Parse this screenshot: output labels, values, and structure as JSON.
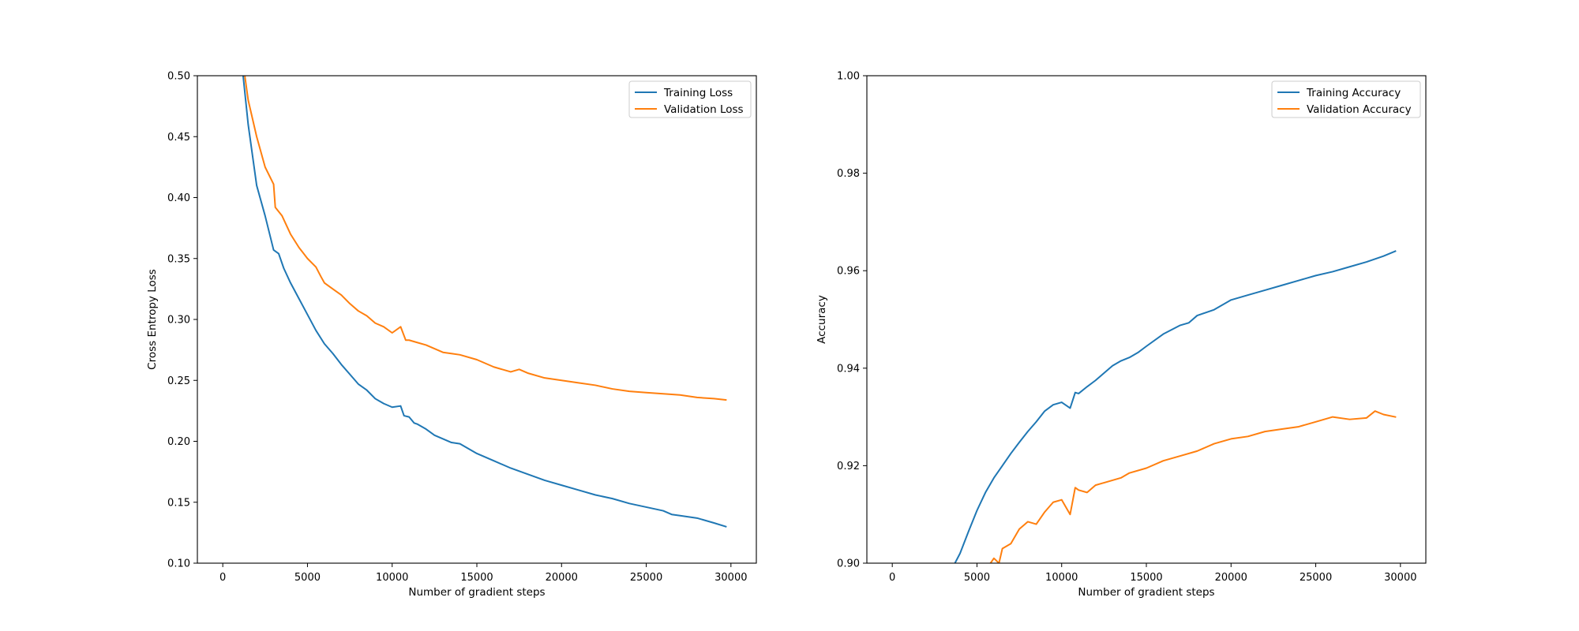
{
  "chart_data": [
    {
      "type": "line",
      "xlabel": "Number of gradient steps",
      "ylabel": "Cross Entropy Loss",
      "xlim": [
        -1500,
        31500
      ],
      "ylim": [
        0.1,
        0.5
      ],
      "xticks": [
        0,
        5000,
        10000,
        15000,
        20000,
        25000,
        30000
      ],
      "yticks": [
        0.1,
        0.15,
        0.2,
        0.25,
        0.3,
        0.35,
        0.4,
        0.45,
        0.5
      ],
      "ytick_decimals": 2,
      "legend": "top-right",
      "series": [
        {
          "name": "Training Loss",
          "color": "#1f77b4",
          "x": [
            0,
            1200,
            1500,
            2000,
            2500,
            3000,
            3300,
            3600,
            4000,
            4500,
            5000,
            5500,
            6000,
            6500,
            7000,
            7500,
            8000,
            8500,
            9000,
            9500,
            10000,
            10500,
            10700,
            11000,
            11300,
            11500,
            12000,
            12500,
            13000,
            13500,
            14000,
            15000,
            16000,
            17000,
            18000,
            19000,
            20000,
            21000,
            22000,
            23000,
            24000,
            25000,
            26000,
            26500,
            27000,
            28000,
            29000,
            29700
          ],
          "y": [
            0.62,
            0.5,
            0.46,
            0.41,
            0.385,
            0.357,
            0.354,
            0.342,
            0.33,
            0.317,
            0.304,
            0.291,
            0.28,
            0.272,
            0.263,
            0.255,
            0.247,
            0.242,
            0.235,
            0.231,
            0.228,
            0.229,
            0.221,
            0.22,
            0.215,
            0.214,
            0.21,
            0.205,
            0.202,
            0.199,
            0.198,
            0.19,
            0.184,
            0.178,
            0.173,
            0.168,
            0.164,
            0.16,
            0.156,
            0.153,
            0.149,
            0.146,
            0.143,
            0.14,
            0.139,
            0.137,
            0.133,
            0.13
          ]
        },
        {
          "name": "Validation Loss",
          "color": "#ff7f0e",
          "x": [
            1300,
            1500,
            2000,
            2500,
            3000,
            3100,
            3500,
            4000,
            4500,
            5000,
            5500,
            5800,
            6000,
            6500,
            7000,
            7500,
            8000,
            8500,
            9000,
            9500,
            10000,
            10500,
            10800,
            11000,
            11500,
            12000,
            12500,
            13000,
            13500,
            14000,
            15000,
            16000,
            17000,
            17500,
            18000,
            19000,
            20000,
            21000,
            22000,
            23000,
            24000,
            25000,
            26000,
            27000,
            28000,
            29000,
            29700
          ],
          "y": [
            0.5,
            0.48,
            0.45,
            0.425,
            0.411,
            0.392,
            0.385,
            0.37,
            0.359,
            0.35,
            0.343,
            0.335,
            0.33,
            0.325,
            0.32,
            0.313,
            0.307,
            0.303,
            0.297,
            0.294,
            0.289,
            0.294,
            0.283,
            0.283,
            0.281,
            0.279,
            0.276,
            0.273,
            0.272,
            0.271,
            0.267,
            0.261,
            0.257,
            0.259,
            0.256,
            0.252,
            0.25,
            0.248,
            0.246,
            0.243,
            0.241,
            0.24,
            0.239,
            0.238,
            0.236,
            0.235,
            0.234
          ]
        }
      ]
    },
    {
      "type": "line",
      "xlabel": "Number of gradient steps",
      "ylabel": "Accuracy",
      "xlim": [
        -1500,
        31500
      ],
      "ylim": [
        0.9,
        1.0
      ],
      "xticks": [
        0,
        5000,
        10000,
        15000,
        20000,
        25000,
        30000
      ],
      "yticks": [
        0.9,
        0.92,
        0.94,
        0.96,
        0.98,
        1.0
      ],
      "ytick_decimals": 2,
      "legend": "top-right",
      "series": [
        {
          "name": "Training Accuracy",
          "color": "#1f77b4",
          "x": [
            3700,
            4000,
            4500,
            5000,
            5500,
            6000,
            6500,
            7000,
            7500,
            8000,
            8500,
            9000,
            9500,
            10000,
            10500,
            10800,
            11000,
            11500,
            12000,
            12500,
            13000,
            13500,
            14000,
            14500,
            15000,
            16000,
            17000,
            17500,
            18000,
            19000,
            20000,
            21000,
            22000,
            23000,
            24000,
            25000,
            26000,
            27000,
            28000,
            29000,
            29700
          ],
          "y": [
            0.9,
            0.902,
            0.9065,
            0.9108,
            0.9145,
            0.9175,
            0.92,
            0.9225,
            0.9248,
            0.927,
            0.929,
            0.9312,
            0.9325,
            0.933,
            0.9318,
            0.935,
            0.9348,
            0.9362,
            0.9375,
            0.939,
            0.9405,
            0.9415,
            0.9422,
            0.9432,
            0.9445,
            0.947,
            0.9488,
            0.9493,
            0.9508,
            0.952,
            0.954,
            0.955,
            0.956,
            0.957,
            0.958,
            0.959,
            0.9598,
            0.9608,
            0.9618,
            0.963,
            0.964
          ]
        },
        {
          "name": "Validation Accuracy",
          "color": "#ff7f0e",
          "x": [
            5800,
            6000,
            6300,
            6500,
            7000,
            7500,
            8000,
            8500,
            9000,
            9500,
            10000,
            10500,
            10800,
            11000,
            11500,
            12000,
            12500,
            13000,
            13500,
            14000,
            15000,
            16000,
            17000,
            18000,
            19000,
            20000,
            21000,
            22000,
            23000,
            24000,
            25000,
            26000,
            27000,
            28000,
            28500,
            29000,
            29700
          ],
          "y": [
            0.9,
            0.901,
            0.9,
            0.903,
            0.904,
            0.907,
            0.9085,
            0.908,
            0.9105,
            0.9125,
            0.913,
            0.91,
            0.9155,
            0.915,
            0.9145,
            0.916,
            0.9165,
            0.917,
            0.9175,
            0.9185,
            0.9195,
            0.921,
            0.922,
            0.923,
            0.9245,
            0.9255,
            0.926,
            0.927,
            0.9275,
            0.928,
            0.929,
            0.93,
            0.9295,
            0.9298,
            0.9312,
            0.9305,
            0.93
          ]
        }
      ]
    }
  ]
}
